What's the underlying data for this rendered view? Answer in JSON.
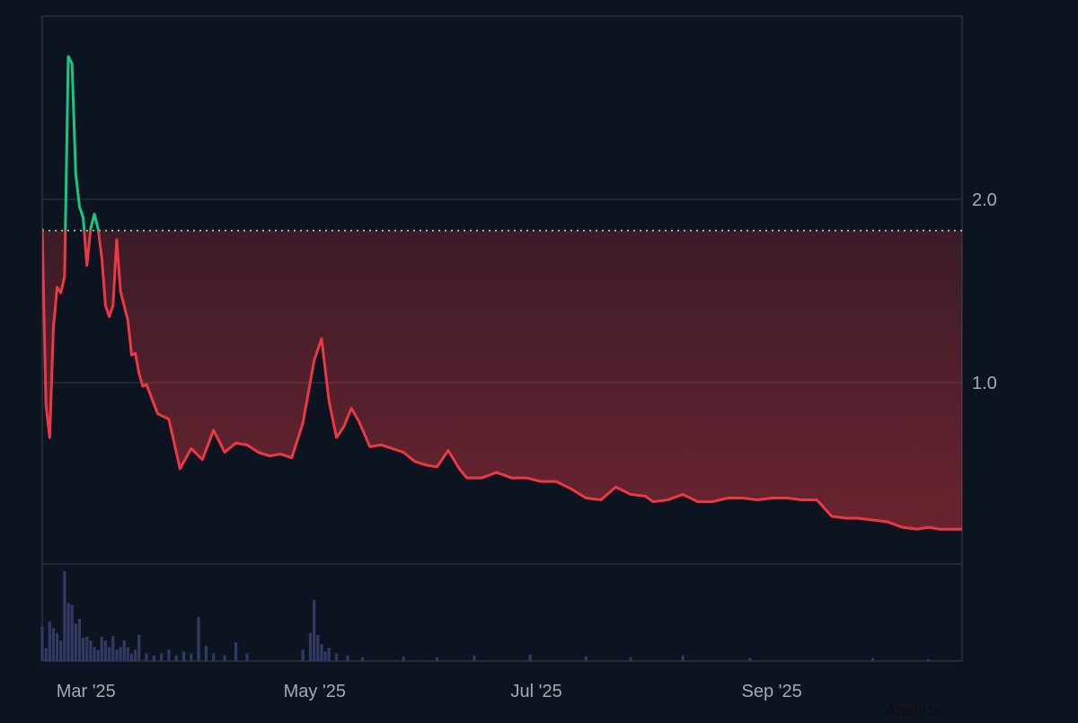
{
  "colors": {
    "background": "#0d1421",
    "grid": "#2a3140",
    "axis_text": "#a4a9b3",
    "line_above": "#16c784",
    "line_below": "#ea3943",
    "fill_below": "#ea3943",
    "reference_line": "#c9ced6",
    "volume_bar": "#323a63"
  },
  "actions": {
    "analyze_label": "Analyze"
  },
  "chart_data": {
    "type": "line",
    "title": "",
    "xlabel": "",
    "ylabel": "",
    "x_range": [
      "2025-02-24",
      "2025-10-29"
    ],
    "ylim": [
      0,
      3.0
    ],
    "y_ticks": [
      1.0,
      2.0
    ],
    "y_tick_labels": [
      "1.0",
      "2.0"
    ],
    "x_ticks": [
      "2025-03-01",
      "2025-05-01",
      "2025-07-01",
      "2025-09-01"
    ],
    "x_tick_labels": [
      "Mar '25",
      "May '25",
      "Jul '25",
      "Sep '25"
    ],
    "grid": true,
    "y_axis_side": "right",
    "reference_value": 1.83,
    "reference_style": "dotted",
    "price": {
      "x": [
        "2025-02-24",
        "2025-02-25",
        "2025-02-26",
        "2025-02-27",
        "2025-02-28",
        "2025-03-01",
        "2025-03-02",
        "2025-03-03",
        "2025-03-04",
        "2025-03-05",
        "2025-03-06",
        "2025-03-07",
        "2025-03-08",
        "2025-03-09",
        "2025-03-10",
        "2025-03-11",
        "2025-03-12",
        "2025-03-13",
        "2025-03-14",
        "2025-03-15",
        "2025-03-16",
        "2025-03-17",
        "2025-03-18",
        "2025-03-19",
        "2025-03-20",
        "2025-03-21",
        "2025-03-22",
        "2025-03-23",
        "2025-03-24",
        "2025-03-27",
        "2025-03-30",
        "2025-04-02",
        "2025-04-05",
        "2025-04-08",
        "2025-04-11",
        "2025-04-14",
        "2025-04-17",
        "2025-04-20",
        "2025-04-23",
        "2025-04-26",
        "2025-04-29",
        "2025-05-02",
        "2025-05-05",
        "2025-05-08",
        "2025-05-10",
        "2025-05-12",
        "2025-05-14",
        "2025-05-16",
        "2025-05-18",
        "2025-05-20",
        "2025-05-23",
        "2025-05-26",
        "2025-05-29",
        "2025-06-01",
        "2025-06-04",
        "2025-06-07",
        "2025-06-10",
        "2025-06-13",
        "2025-06-16",
        "2025-06-18",
        "2025-06-22",
        "2025-06-26",
        "2025-06-30",
        "2025-07-04",
        "2025-07-08",
        "2025-07-12",
        "2025-07-16",
        "2025-07-20",
        "2025-07-24",
        "2025-07-28",
        "2025-08-01",
        "2025-08-05",
        "2025-08-07",
        "2025-08-11",
        "2025-08-15",
        "2025-08-19",
        "2025-08-23",
        "2025-08-27",
        "2025-08-31",
        "2025-09-04",
        "2025-09-08",
        "2025-09-12",
        "2025-09-16",
        "2025-09-20",
        "2025-09-24",
        "2025-09-28",
        "2025-10-01",
        "2025-10-05",
        "2025-10-09",
        "2025-10-13",
        "2025-10-17",
        "2025-10-20",
        "2025-10-23",
        "2025-10-26",
        "2025-10-29"
      ],
      "y": [
        1.84,
        0.88,
        0.7,
        1.3,
        1.52,
        1.49,
        1.58,
        2.78,
        2.74,
        2.14,
        1.96,
        1.9,
        1.64,
        1.84,
        1.92,
        1.84,
        1.68,
        1.42,
        1.36,
        1.42,
        1.78,
        1.5,
        1.42,
        1.34,
        1.15,
        1.16,
        1.05,
        0.98,
        0.99,
        0.83,
        0.8,
        0.53,
        0.64,
        0.58,
        0.74,
        0.62,
        0.67,
        0.66,
        0.62,
        0.6,
        0.61,
        0.59,
        0.78,
        1.12,
        1.24,
        0.9,
        0.7,
        0.76,
        0.86,
        0.79,
        0.65,
        0.66,
        0.64,
        0.62,
        0.57,
        0.55,
        0.54,
        0.63,
        0.53,
        0.48,
        0.48,
        0.51,
        0.48,
        0.48,
        0.46,
        0.46,
        0.42,
        0.37,
        0.36,
        0.43,
        0.39,
        0.38,
        0.35,
        0.36,
        0.39,
        0.35,
        0.35,
        0.37,
        0.37,
        0.36,
        0.37,
        0.37,
        0.36,
        0.36,
        0.27,
        0.26,
        0.26,
        0.25,
        0.24,
        0.21,
        0.2,
        0.21,
        0.2,
        0.2,
        0.2
      ]
    },
    "volume": {
      "x": [
        "2025-02-24",
        "2025-02-25",
        "2025-02-26",
        "2025-02-27",
        "2025-02-28",
        "2025-03-01",
        "2025-03-02",
        "2025-03-03",
        "2025-03-04",
        "2025-03-05",
        "2025-03-06",
        "2025-03-07",
        "2025-03-08",
        "2025-03-09",
        "2025-03-10",
        "2025-03-11",
        "2025-03-12",
        "2025-03-13",
        "2025-03-14",
        "2025-03-15",
        "2025-03-16",
        "2025-03-17",
        "2025-03-18",
        "2025-03-19",
        "2025-03-20",
        "2025-03-21",
        "2025-03-22",
        "2025-03-24",
        "2025-03-26",
        "2025-03-28",
        "2025-03-30",
        "2025-04-01",
        "2025-04-03",
        "2025-04-05",
        "2025-04-07",
        "2025-04-09",
        "2025-04-11",
        "2025-04-14",
        "2025-04-17",
        "2025-04-20",
        "2025-05-05",
        "2025-05-07",
        "2025-05-08",
        "2025-05-09",
        "2025-05-10",
        "2025-05-11",
        "2025-05-12",
        "2025-05-14",
        "2025-05-17",
        "2025-05-21",
        "2025-06-01",
        "2025-06-10",
        "2025-06-20",
        "2025-07-05",
        "2025-07-20",
        "2025-08-01",
        "2025-08-15",
        "2025-09-02",
        "2025-10-05",
        "2025-10-20"
      ],
      "values": [
        37,
        14,
        42,
        35,
        30,
        22,
        96,
        62,
        60,
        40,
        45,
        25,
        26,
        22,
        15,
        12,
        26,
        22,
        15,
        27,
        12,
        15,
        22,
        15,
        8,
        12,
        28,
        8,
        6,
        8,
        12,
        6,
        10,
        8,
        47,
        16,
        8,
        6,
        20,
        8,
        12,
        30,
        65,
        28,
        18,
        10,
        14,
        8,
        6,
        4,
        5,
        4,
        6,
        7,
        5,
        4,
        6,
        3,
        3,
        2
      ]
    }
  }
}
